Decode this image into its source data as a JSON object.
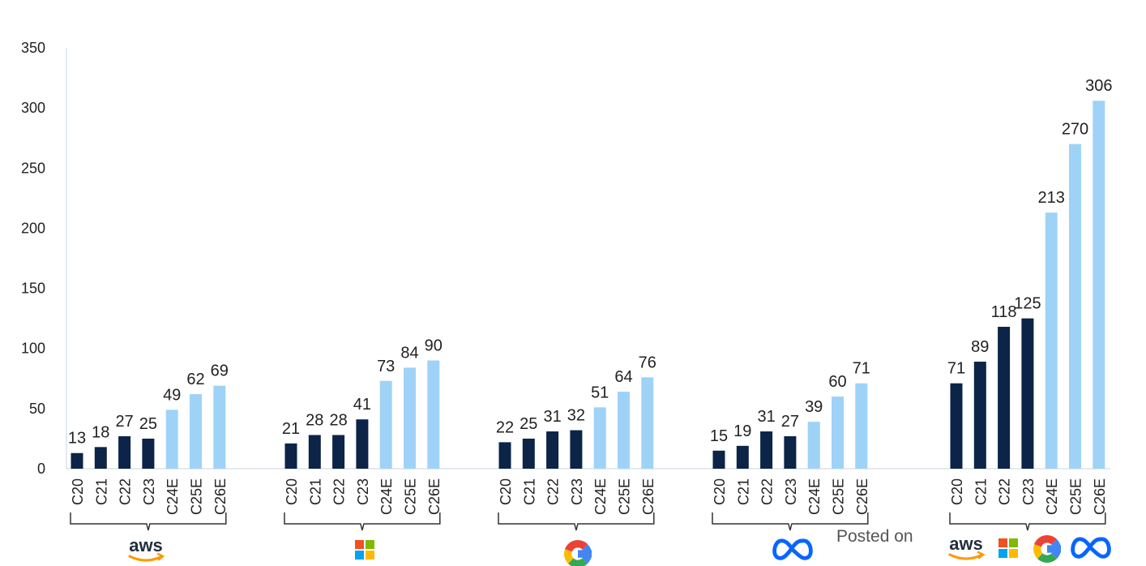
{
  "chart_data": {
    "type": "bar",
    "ylim": [
      0,
      350
    ],
    "yticks": [
      0,
      50,
      100,
      150,
      200,
      250,
      300,
      350
    ],
    "categories": [
      "C20",
      "C21",
      "C22",
      "C23",
      "C24E",
      "C25E",
      "C26E"
    ],
    "actual_color": "#0b2447",
    "estimate_color": "#9ed3f7",
    "groups": [
      {
        "logo": "aws-logo",
        "values": [
          13,
          18,
          27,
          25,
          49,
          62,
          69
        ]
      },
      {
        "logo": "microsoft-logo",
        "values": [
          21,
          28,
          28,
          41,
          73,
          84,
          90
        ]
      },
      {
        "logo": "google-logo",
        "values": [
          22,
          25,
          31,
          32,
          51,
          64,
          76
        ]
      },
      {
        "logo": "meta-logo",
        "values": [
          15,
          19,
          31,
          27,
          39,
          60,
          71
        ]
      },
      {
        "logo": "combined-logos",
        "values": [
          71,
          89,
          118,
          125,
          213,
          270,
          306
        ]
      }
    ],
    "grid": false
  },
  "watermark": {
    "text": "Posted on"
  }
}
